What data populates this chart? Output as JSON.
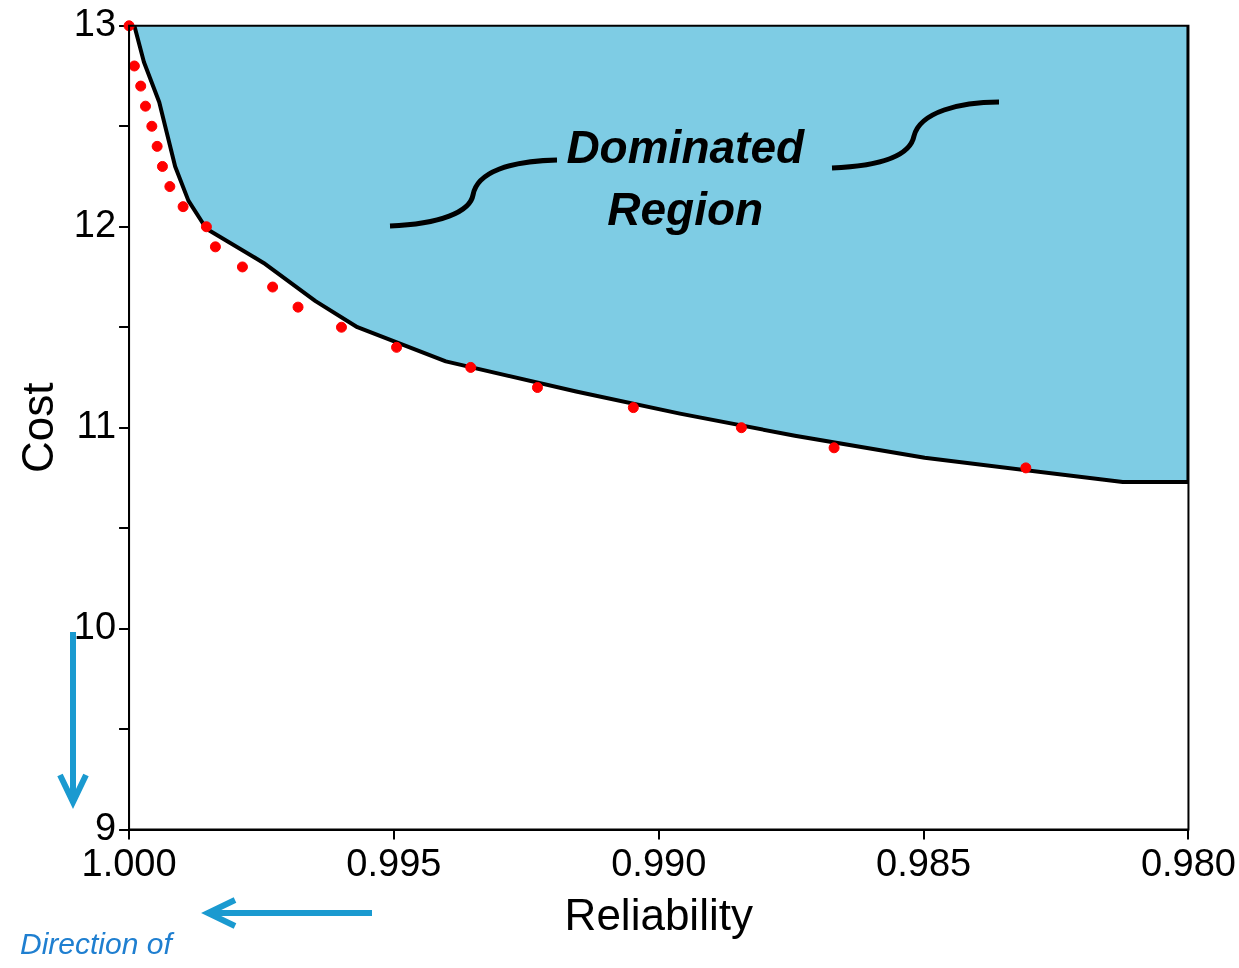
{
  "chart_data": {
    "type": "scatter",
    "xlabel": "Reliability",
    "ylabel": "Cost",
    "xlim": [
      1.0,
      0.98
    ],
    "xticks": [
      {
        "value": 1.0,
        "label": "1.000"
      },
      {
        "value": 0.995,
        "label": "0.995"
      },
      {
        "value": 0.99,
        "label": "0.990"
      },
      {
        "value": 0.985,
        "label": "0.985"
      },
      {
        "value": 0.98,
        "label": "0.980"
      }
    ],
    "ylim": [
      9,
      13
    ],
    "yticks": [
      9,
      {
        "value": 9.5,
        "label": null
      },
      10,
      {
        "value": 10.5,
        "label": null
      },
      11,
      {
        "value": 11.5,
        "label": null
      },
      12,
      {
        "value": 12.5,
        "label": null
      },
      13
    ],
    "grid": false,
    "legend": false,
    "series": [
      {
        "type": "area",
        "color": "#7ecce4",
        "x": [
          0.9999,
          0.99972,
          0.99943,
          0.99929,
          0.99913,
          0.99888,
          0.99854,
          0.99746,
          0.99648,
          0.99569,
          0.99402,
          0.99156,
          0.9896,
          0.98743,
          0.98498,
          0.98124,
          0.98,
          0.98
        ],
        "values": [
          13.0,
          12.82,
          12.62,
          12.47,
          12.3,
          12.13,
          11.99,
          11.82,
          11.63,
          11.5,
          11.33,
          11.18,
          11.07,
          10.96,
          10.85,
          10.73,
          10.73,
          13.0
        ]
      },
      {
        "marker": "circle",
        "color": "#ff0000",
        "x": [
          1.0,
          0.9999,
          0.99978,
          0.99969,
          0.99957,
          0.99947,
          0.99937,
          0.99923,
          0.99898,
          0.99854,
          0.99837,
          0.99786,
          0.99729,
          0.99681,
          0.99599,
          0.99495,
          0.99355,
          0.99229,
          0.99048,
          0.98844,
          0.98669,
          0.98307
        ],
        "values": [
          13.0,
          12.8,
          12.7,
          12.6,
          12.5,
          12.4,
          12.3,
          12.2,
          12.1,
          12.0,
          11.9,
          11.8,
          11.7,
          11.6,
          11.5,
          11.4,
          11.3,
          11.2,
          11.1,
          11.0,
          10.9,
          10.8
        ]
      }
    ],
    "annotations": [
      "Dominated Region",
      "Direction of"
    ]
  }
}
